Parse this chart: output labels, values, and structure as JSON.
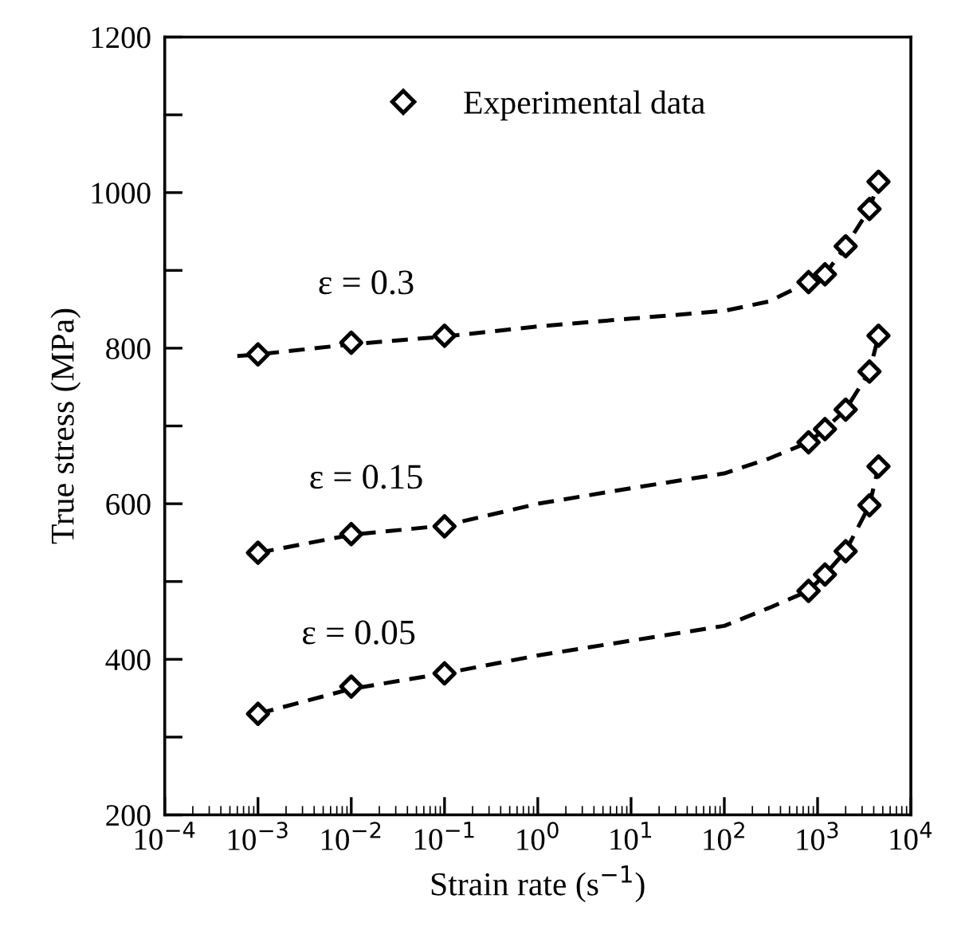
{
  "chart_data": {
    "type": "scatter",
    "xlabel": "Strain rate (s$^{−1}$)",
    "ylabel": "True stress (MPa)",
    "log": "x",
    "xlim": [
      0.0001,
      10000
    ],
    "ylim": [
      200,
      1200
    ],
    "xticks": [
      {
        "value": 0.0001,
        "label": "10$^{−4}$"
      },
      {
        "value": 0.001,
        "label": "10$^{−3}$"
      },
      {
        "value": 0.01,
        "label": "10$^{−2}$"
      },
      {
        "value": 0.1,
        "label": "10$^{−1}$"
      },
      {
        "value": 1,
        "label": "10$^{0}$"
      },
      {
        "value": 10,
        "label": "10$^{1}$"
      },
      {
        "value": 100,
        "label": "10$^{2}$"
      },
      {
        "value": 1000,
        "label": "10$^{3}$"
      },
      {
        "value": 10000,
        "label": "10$^{4}$"
      }
    ],
    "yticks": [
      200,
      {
        "value": 300,
        "label": null
      },
      400,
      {
        "value": 500,
        "label": null
      },
      600,
      {
        "value": 700,
        "label": null
      },
      800,
      {
        "value": 900,
        "label": null
      },
      1000,
      {
        "value": 1100,
        "label": null
      },
      1200
    ],
    "grid": false,
    "legend": "top",
    "series": [
      {
        "name": "Experimental data",
        "marker": "diamond",
        "color": "#000000",
        "x": [
          0.001,
          0.01,
          0.1,
          800,
          1200,
          2000,
          3600,
          4500,
          0.001,
          0.01,
          0.1,
          800,
          1200,
          2000,
          3600,
          4500,
          0.001,
          0.01,
          0.1,
          800,
          1200,
          2000,
          3600,
          4500
        ],
        "values": [
          792,
          807,
          816,
          885,
          895,
          931,
          979,
          1014,
          537,
          561,
          571,
          679,
          696,
          721,
          770,
          816,
          330,
          365,
          382,
          488,
          509,
          539,
          598,
          648
        ]
      },
      {
        "type": "line",
        "line_style": "dashed",
        "color": "#000000",
        "x": [
          0.0006,
          0.001,
          0.01,
          0.1,
          1,
          10,
          100,
          300,
          800,
          1200,
          2000,
          3600,
          4500
        ],
        "values": [
          790,
          792,
          805,
          815,
          828,
          838,
          848,
          860,
          885,
          895,
          931,
          979,
          1014
        ]
      },
      {
        "type": "line",
        "line_style": "dashed",
        "color": "#000000",
        "x": [
          0.001,
          0.01,
          0.1,
          1,
          10,
          100,
          300,
          800,
          1200,
          2000,
          3600,
          4500
        ],
        "values": [
          537,
          560,
          572,
          600,
          620,
          639,
          658,
          679,
          696,
          721,
          770,
          816
        ]
      },
      {
        "type": "line",
        "line_style": "dashed",
        "color": "#000000",
        "x": [
          0.001,
          0.01,
          0.1,
          1,
          10,
          100,
          300,
          800,
          1200,
          2000,
          3600,
          4500
        ],
        "values": [
          330,
          362,
          382,
          405,
          424,
          443,
          466,
          488,
          509,
          539,
          598,
          648
        ]
      }
    ],
    "annotations": [
      "ε = 0.3",
      "ε = 0.15",
      "ε = 0.05"
    ]
  }
}
